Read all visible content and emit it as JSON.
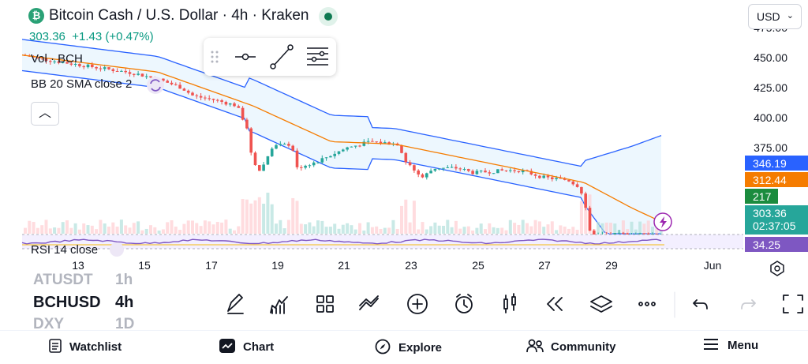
{
  "header": {
    "title": "Bitcoin Cash / U.S. Dollar · 4h · Kraken",
    "coin_glyph": "₿",
    "price": "303.36",
    "change": "+1.43 (+0.47%)",
    "currency": "USD"
  },
  "indicators": {
    "volume": "Vol · BCH",
    "bb": "BB 20 SMA close 2",
    "rsi": "RSI 14 close"
  },
  "price_axis": {
    "ticks": [
      "475.00",
      "450.00",
      "425.00",
      "400.00",
      "375.00"
    ],
    "tags": {
      "bb_upper": "346.19",
      "bb_basis": "312.44",
      "volume": "217",
      "last_price": "303.36",
      "countdown": "02:37:05",
      "rsi": "34.25"
    }
  },
  "time_axis": [
    "13",
    "15",
    "17",
    "19",
    "21",
    "23",
    "25",
    "27",
    "29",
    "Jun"
  ],
  "symbols": {
    "prev": "ATUSDT",
    "current": "BCHUSD",
    "next": "DXY",
    "prev_tf": "1h",
    "current_tf": "4h",
    "next_tf": "1D"
  },
  "toolbar": {
    "icons": [
      "pencil-icon",
      "indicators-icon",
      "layouts-icon",
      "compare-icon",
      "add-icon",
      "alert-clock-icon",
      "candles-icon",
      "replay-icon",
      "layers-icon",
      "more-icon",
      "undo-icon",
      "redo-icon",
      "fullscreen-icon"
    ]
  },
  "nav": {
    "watchlist": "Watchlist",
    "chart": "Chart",
    "explore": "Explore",
    "community": "Community",
    "menu": "Menu"
  },
  "colors": {
    "up": "#26a69a",
    "down": "#ef5350",
    "bb_band": "#2962ff",
    "bb_basis": "#f57c00",
    "rsi": "#7e57c2",
    "price_green": "#089981"
  }
}
